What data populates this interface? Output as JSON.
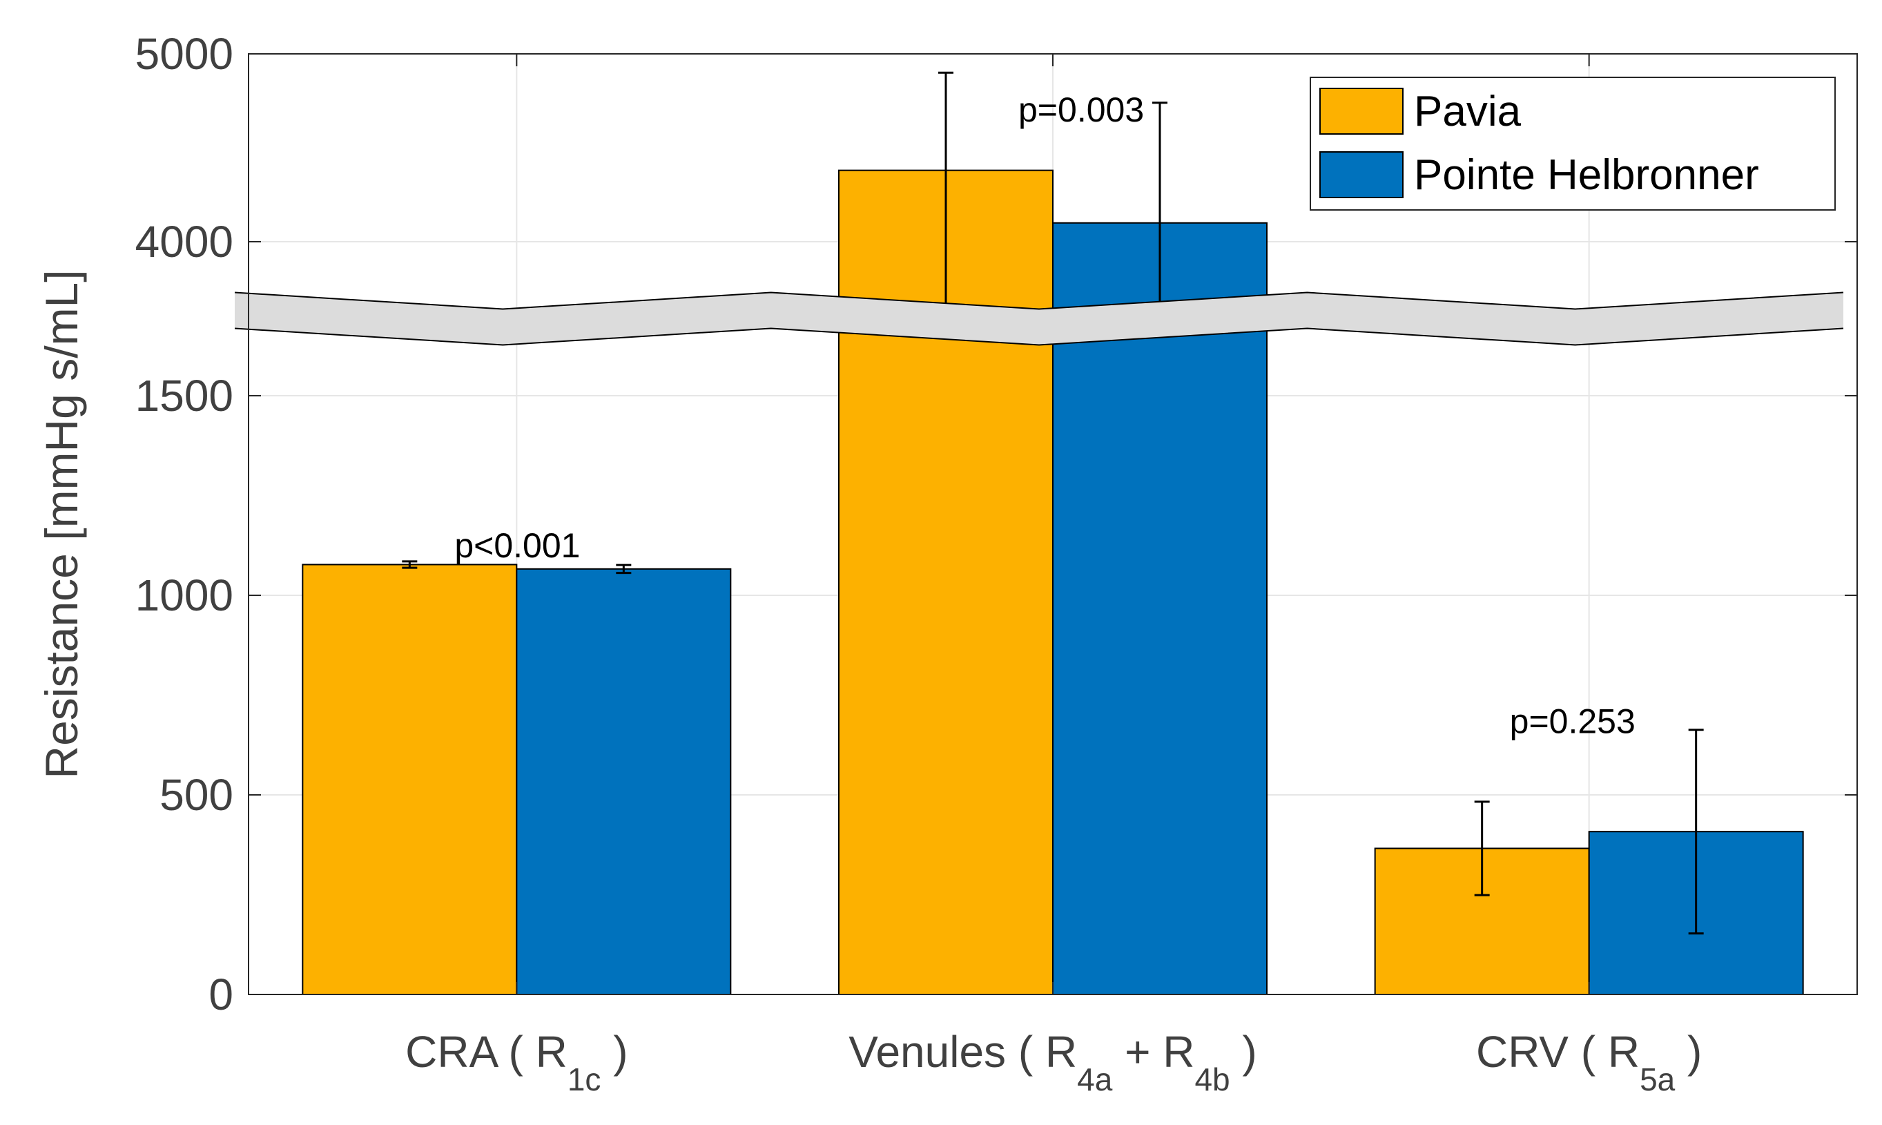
{
  "chart_data": {
    "type": "bar",
    "title": "",
    "xlabel": "",
    "ylabel": "Resistance [mmHg s/mL]",
    "axis_break": {
      "lower_range": [
        0,
        1500
      ],
      "upper_range": [
        4000,
        5000
      ]
    },
    "yticks": [
      "0",
      "500",
      "1000",
      "1500",
      "4000",
      "5000"
    ],
    "grid": true,
    "legend_position": "top-right",
    "categories": [
      {
        "base": "CRA ( R",
        "sub1": "1c",
        "plus": "",
        "sub2": "",
        "close": " )"
      },
      {
        "base": "Venules ( R",
        "sub1": "4a",
        "plus": " + R",
        "sub2": "4b",
        "close": " )"
      },
      {
        "base": "CRV ( R",
        "sub1": "5a",
        "plus": "",
        "sub2": "",
        "close": " )"
      }
    ],
    "series": [
      {
        "name": "Pavia",
        "color": "#FDB100",
        "values": [
          1077,
          4380,
          366
        ],
        "errors": [
          8,
          520,
          117
        ]
      },
      {
        "name": "Pointe Helbronner",
        "color": "#0072BD",
        "values": [
          1066,
          4100,
          408
        ],
        "errors": [
          10,
          640,
          255
        ]
      }
    ],
    "annotations": [
      "p<0.001",
      "p=0.003",
      "p=0.253"
    ]
  }
}
